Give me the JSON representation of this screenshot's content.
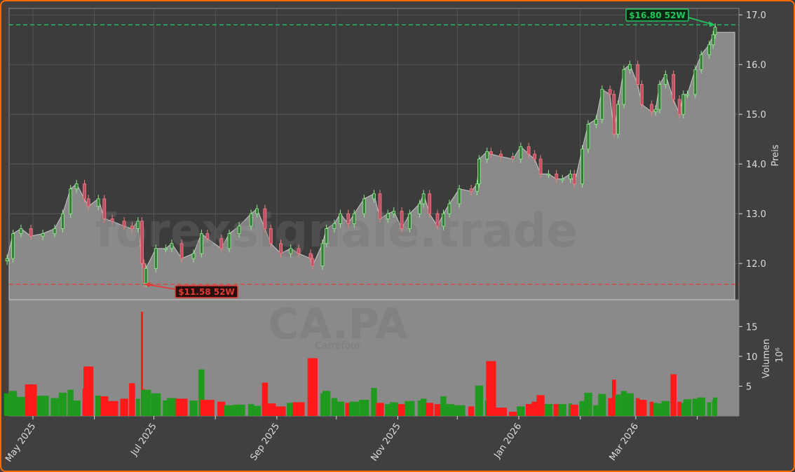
{
  "chart_data": {
    "type": "candlestick",
    "watermark": {
      "site": "forexsignale.trade",
      "ticker": "CA.PA",
      "name": "Carrefour"
    },
    "xlim": [
      "2025-04-19",
      "2026-04-22"
    ],
    "x_ticks": [
      "2025-05-01",
      "2025-06-01",
      "2025-07-01",
      "2025-08-01",
      "2025-09-01",
      "2025-10-01",
      "2025-11-01",
      "2025-12-01",
      "2026-01-01",
      "2026-02-01",
      "2026-03-01",
      "2026-04-01"
    ],
    "x_tick_labels": [
      {
        "date": "2025-05-01",
        "label": "May 2025"
      },
      {
        "date": "2025-07-01",
        "label": "Jul 2025"
      },
      {
        "date": "2025-09-01",
        "label": "Sep 2025"
      },
      {
        "date": "2025-11-01",
        "label": "Nov 2025"
      },
      {
        "date": "2026-01-01",
        "label": "Jan 2026"
      },
      {
        "date": "2026-03-01",
        "label": "Mar 2026"
      }
    ],
    "price_axis": {
      "label": "Preis",
      "ylim": [
        11.27,
        17.13
      ],
      "ticks": [
        "12.0",
        "13.0",
        "14.0",
        "15.0",
        "16.0",
        "17.0"
      ]
    },
    "volume_axis": {
      "label": "Volumen",
      "unit": "10⁶",
      "ylim": [
        0,
        19.5
      ],
      "ticks": [
        "5",
        "10",
        "15"
      ]
    },
    "grid": true,
    "high_52w": {
      "value": 16.8,
      "label": "$16.80 52W",
      "date": "2026-04-10",
      "color": "#22c55e"
    },
    "low_52w": {
      "value": 11.58,
      "label": "$11.58 52W",
      "date": "2025-06-26",
      "color": "#e53935"
    },
    "colors": {
      "up_candle": "#90ee90",
      "down_candle": "#f08080",
      "up_volume": "#1f9a1f",
      "down_volume": "#ff1a1a",
      "area": "#8a8a8a",
      "background": "#404040",
      "border": "#ff6a00"
    },
    "last_close_flat": 16.65,
    "series": [
      [
        "2025-04-18",
        12.1,
        3.8
      ],
      [
        "2025-04-21",
        12.6,
        4.2
      ],
      [
        "2025-04-25",
        12.7,
        3.2
      ],
      [
        "2025-04-30",
        12.55,
        5.3
      ],
      [
        "2025-05-06",
        12.6,
        3.4
      ],
      [
        "2025-05-12",
        12.7,
        3.0
      ],
      [
        "2025-05-16",
        13.0,
        3.9
      ],
      [
        "2025-05-20",
        13.5,
        4.4
      ],
      [
        "2025-05-23",
        13.6,
        2.6
      ],
      [
        "2025-05-27",
        13.3,
        4.6
      ],
      [
        "2025-05-29",
        13.15,
        8.3
      ],
      [
        "2025-06-03",
        13.3,
        3.4
      ],
      [
        "2025-06-06",
        12.9,
        3.3
      ],
      [
        "2025-06-10",
        12.85,
        2.5
      ],
      [
        "2025-06-16",
        12.75,
        2.9
      ],
      [
        "2025-06-20",
        12.7,
        5.5
      ],
      [
        "2025-06-23",
        12.85,
        2.9
      ],
      [
        "2025-06-25",
        12.0,
        17.5
      ],
      [
        "2025-06-26",
        11.6,
        4.5
      ],
      [
        "2025-06-27",
        11.9,
        4.4
      ],
      [
        "2025-07-02",
        12.3,
        3.8
      ],
      [
        "2025-07-07",
        12.3,
        2.6
      ],
      [
        "2025-07-10",
        12.4,
        3.0
      ],
      [
        "2025-07-15",
        12.1,
        2.9
      ],
      [
        "2025-07-21",
        12.2,
        2.6
      ],
      [
        "2025-07-25",
        12.6,
        7.8
      ],
      [
        "2025-07-28",
        12.5,
        2.7
      ],
      [
        "2025-08-04",
        12.3,
        2.4
      ],
      [
        "2025-08-08",
        12.6,
        1.8
      ],
      [
        "2025-08-13",
        12.75,
        1.9
      ],
      [
        "2025-08-19",
        13.0,
        2.0
      ],
      [
        "2025-08-22",
        13.1,
        1.7
      ],
      [
        "2025-08-26",
        12.7,
        5.6
      ],
      [
        "2025-08-29",
        12.4,
        2.1
      ],
      [
        "2025-09-03",
        12.2,
        1.6
      ],
      [
        "2025-09-08",
        12.3,
        2.2
      ],
      [
        "2025-09-12",
        12.2,
        2.3
      ],
      [
        "2025-09-18",
        12.1,
        2.9
      ],
      [
        "2025-09-19",
        11.95,
        9.7
      ],
      [
        "2025-09-24",
        12.4,
        3.8
      ],
      [
        "2025-09-26",
        12.7,
        4.2
      ],
      [
        "2025-09-30",
        12.8,
        3.0
      ],
      [
        "2025-10-03",
        13.0,
        2.4
      ],
      [
        "2025-10-07",
        12.8,
        2.2
      ],
      [
        "2025-10-10",
        13.0,
        2.4
      ],
      [
        "2025-10-15",
        13.3,
        2.7
      ],
      [
        "2025-10-20",
        13.4,
        4.7
      ],
      [
        "2025-10-23",
        12.9,
        2.2
      ],
      [
        "2025-10-27",
        13.0,
        2.0
      ],
      [
        "2025-10-30",
        13.05,
        2.3
      ],
      [
        "2025-11-03",
        12.7,
        2.0
      ],
      [
        "2025-11-07",
        13.0,
        2.5
      ],
      [
        "2025-11-12",
        13.2,
        2.6
      ],
      [
        "2025-11-14",
        13.4,
        2.9
      ],
      [
        "2025-11-17",
        13.0,
        2.2
      ],
      [
        "2025-11-21",
        12.75,
        2.0
      ],
      [
        "2025-11-24",
        13.0,
        3.3
      ],
      [
        "2025-11-27",
        13.2,
        2.0
      ],
      [
        "2025-12-02",
        13.5,
        1.8
      ],
      [
        "2025-12-08",
        13.45,
        1.6
      ],
      [
        "2025-12-11",
        13.6,
        2.2
      ],
      [
        "2025-12-12",
        14.1,
        5.1
      ],
      [
        "2025-12-16",
        14.25,
        2.6
      ],
      [
        "2025-12-18",
        14.2,
        9.2
      ],
      [
        "2025-12-23",
        14.15,
        1.4
      ],
      [
        "2025-12-29",
        14.1,
        0.7
      ],
      [
        "2026-01-02",
        14.35,
        1.6
      ],
      [
        "2026-01-06",
        14.2,
        2.0
      ],
      [
        "2026-01-09",
        14.1,
        2.4
      ],
      [
        "2026-01-12",
        13.8,
        3.5
      ],
      [
        "2026-01-16",
        13.8,
        2.0
      ],
      [
        "2026-01-20",
        13.7,
        2.0
      ],
      [
        "2026-01-23",
        13.7,
        2.0
      ],
      [
        "2026-01-27",
        13.8,
        2.1
      ],
      [
        "2026-01-29",
        13.6,
        1.9
      ],
      [
        "2026-02-02",
        14.3,
        2.5
      ],
      [
        "2026-02-05",
        14.8,
        3.9
      ],
      [
        "2026-02-09",
        14.9,
        1.8
      ],
      [
        "2026-02-12",
        15.5,
        3.7
      ],
      [
        "2026-02-16",
        15.4,
        3.0
      ],
      [
        "2026-02-18",
        14.6,
        6.1
      ],
      [
        "2026-02-20",
        15.2,
        3.6
      ],
      [
        "2026-02-23",
        15.9,
        4.2
      ],
      [
        "2026-02-26",
        16.0,
        3.8
      ],
      [
        "2026-03-02",
        15.6,
        3.0
      ],
      [
        "2026-03-04",
        15.2,
        2.7
      ],
      [
        "2026-03-09",
        15.05,
        2.4
      ],
      [
        "2026-03-11",
        15.1,
        2.2
      ],
      [
        "2026-03-13",
        15.6,
        2.1
      ],
      [
        "2026-03-16",
        15.8,
        2.5
      ],
      [
        "2026-03-20",
        15.3,
        7.0
      ],
      [
        "2026-03-23",
        15.0,
        2.4
      ],
      [
        "2026-03-25",
        15.4,
        2.2
      ],
      [
        "2026-03-27",
        15.4,
        2.8
      ],
      [
        "2026-03-31",
        15.9,
        2.9
      ],
      [
        "2026-04-03",
        16.2,
        3.1
      ],
      [
        "2026-04-07",
        16.4,
        2.3
      ],
      [
        "2026-04-09",
        16.6,
        2.7
      ],
      [
        "2026-04-10",
        16.75,
        3.1
      ]
    ]
  }
}
